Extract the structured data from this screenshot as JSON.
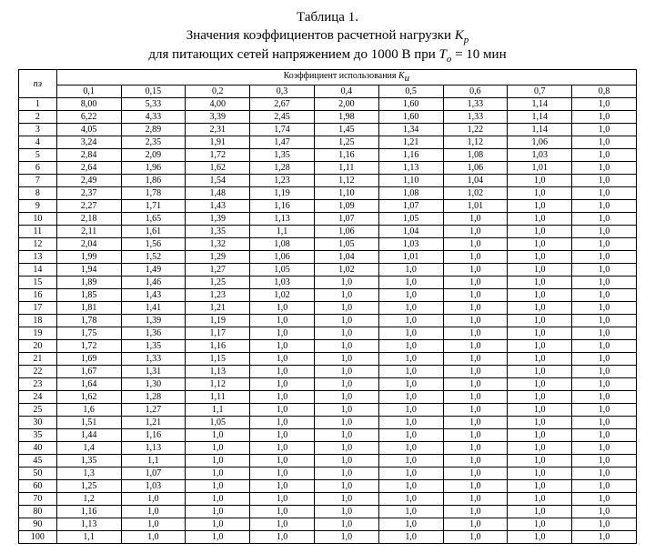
{
  "title": {
    "line1": "Таблица 1.",
    "line2_a": "Значения коэффициентов расчетной нагрузки ",
    "line2_b": "К",
    "line2_sub": "р",
    "line3_a": "для питающих сетей напряжением до 1000 В при ",
    "line3_b": "Т",
    "line3_sub": "о",
    "line3_c": " = 10 мин"
  },
  "header": {
    "na": "nэ",
    "group_a": "Коэффициент использования ",
    "group_b": "К",
    "group_sub": "и"
  },
  "cols": [
    "0,1",
    "0,15",
    "0,2",
    "0,3",
    "0,4",
    "0,5",
    "0,6",
    "0,7",
    "0,8"
  ],
  "na": [
    "1",
    "2",
    "3",
    "4",
    "5",
    "6",
    "7",
    "8",
    "9",
    "10",
    "11",
    "12",
    "13",
    "14",
    "15",
    "16",
    "17",
    "18",
    "19",
    "20",
    "21",
    "22",
    "23",
    "24",
    "25",
    "30",
    "35",
    "40",
    "45",
    "50",
    "60",
    "70",
    "80",
    "90",
    "100"
  ],
  "rows": [
    [
      "8,00",
      "5,33",
      "4,00",
      "2,67",
      "2,00",
      "1,60",
      "1,33",
      "1,14",
      "1,0"
    ],
    [
      "6,22",
      "4,33",
      "3,39",
      "2,45",
      "1,98",
      "1,60",
      "1,33",
      "1,14",
      "1,0"
    ],
    [
      "4,05",
      "2,89",
      "2,31",
      "1,74",
      "1,45",
      "1,34",
      "1,22",
      "1,14",
      "1,0"
    ],
    [
      "3,24",
      "2,35",
      "1,91",
      "1,47",
      "1,25",
      "1,21",
      "1,12",
      "1,06",
      "1,0"
    ],
    [
      "2,84",
      "2,09",
      "1,72",
      "1,35",
      "1,16",
      "1,16",
      "1,08",
      "1,03",
      "1,0"
    ],
    [
      "2,64",
      "1,96",
      "1,62",
      "1,28",
      "1,11",
      "1,13",
      "1,06",
      "1,01",
      "1,0"
    ],
    [
      "2,49",
      "1,86",
      "1,54",
      "1,23",
      "1,12",
      "1,10",
      "1,04",
      "1,0",
      "1,0"
    ],
    [
      "2,37",
      "1,78",
      "1,48",
      "1,19",
      "1,10",
      "1,08",
      "1,02",
      "1,0",
      "1,0"
    ],
    [
      "2,27",
      "1,71",
      "1,43",
      "1,16",
      "1,09",
      "1,07",
      "1,01",
      "1,0",
      "1,0"
    ],
    [
      "2,18",
      "1,65",
      "1,39",
      "1,13",
      "1,07",
      "1,05",
      "1,0",
      "1,0",
      "1,0"
    ],
    [
      "2,11",
      "1,61",
      "1,35",
      "1,1",
      "1,06",
      "1,04",
      "1,0",
      "1,0",
      "1,0"
    ],
    [
      "2,04",
      "1,56",
      "1,32",
      "1,08",
      "1,05",
      "1,03",
      "1,0",
      "1,0",
      "1,0"
    ],
    [
      "1,99",
      "1,52",
      "1,29",
      "1,06",
      "1,04",
      "1,01",
      "1,0",
      "1,0",
      "1,0"
    ],
    [
      "1,94",
      "1,49",
      "1,27",
      "1,05",
      "1,02",
      "1,0",
      "1,0",
      "1,0",
      "1,0"
    ],
    [
      "1,89",
      "1,46",
      "1,25",
      "1,03",
      "1,0",
      "1,0",
      "1,0",
      "1,0",
      "1,0"
    ],
    [
      "1,85",
      "1,43",
      "1,23",
      "1,02",
      "1,0",
      "1,0",
      "1,0",
      "1,0",
      "1,0"
    ],
    [
      "1,81",
      "1,41",
      "1,21",
      "1,0",
      "1,0",
      "1,0",
      "1,0",
      "1,0",
      "1,0"
    ],
    [
      "1,78",
      "1,39",
      "1,19",
      "1,0",
      "1,0",
      "1,0",
      "1,0",
      "1,0",
      "1,0"
    ],
    [
      "1,75",
      "1,36",
      "1,17",
      "1,0",
      "1,0",
      "1,0",
      "1,0",
      "1,0",
      "1,0"
    ],
    [
      "1,72",
      "1,35",
      "1,16",
      "1,0",
      "1,0",
      "1,0",
      "1,0",
      "1,0",
      "1,0"
    ],
    [
      "1,69",
      "1,33",
      "1,15",
      "1,0",
      "1,0",
      "1,0",
      "1,0",
      "1,0",
      "1,0"
    ],
    [
      "1,67",
      "1,31",
      "1,13",
      "1,0",
      "1,0",
      "1,0",
      "1,0",
      "1,0",
      "1,0"
    ],
    [
      "1,64",
      "1,30",
      "1,12",
      "1,0",
      "1,0",
      "1,0",
      "1,0",
      "1,0",
      "1,0"
    ],
    [
      "1,62",
      "1,28",
      "1,11",
      "1,0",
      "1,0",
      "1,0",
      "1,0",
      "1,0",
      "1,0"
    ],
    [
      "1,6",
      "1,27",
      "1,1",
      "1,0",
      "1,0",
      "1,0",
      "1,0",
      "1,0",
      "1,0"
    ],
    [
      "1,51",
      "1,21",
      "1,05",
      "1,0",
      "1,0",
      "1,0",
      "1,0",
      "1,0",
      "1,0"
    ],
    [
      "1,44",
      "1,16",
      "1,0",
      "1,0",
      "1,0",
      "1,0",
      "1,0",
      "1,0",
      "1,0"
    ],
    [
      "1,4",
      "1,13",
      "1,0",
      "1,0",
      "1,0",
      "1,0",
      "1,0",
      "1,0",
      "1,0"
    ],
    [
      "1,35",
      "1,1",
      "1,0",
      "1,0",
      "1,0",
      "1,0",
      "1,0",
      "1,0",
      "1,0"
    ],
    [
      "1,3",
      "1,07",
      "1,0",
      "1,0",
      "1,0",
      "1,0",
      "1,0",
      "1,0",
      "1,0"
    ],
    [
      "1,25",
      "1,03",
      "1,0",
      "1,0",
      "1,0",
      "1,0",
      "1,0",
      "1,0",
      "1,0"
    ],
    [
      "1,2",
      "1,0",
      "1,0",
      "1,0",
      "1,0",
      "1,0",
      "1,0",
      "1,0",
      "1,0"
    ],
    [
      "1,16",
      "1,0",
      "1,0",
      "1,0",
      "1,0",
      "1,0",
      "1,0",
      "1,0",
      "1,0"
    ],
    [
      "1,13",
      "1,0",
      "1,0",
      "1,0",
      "1,0",
      "1,0",
      "1,0",
      "1,0",
      "1,0"
    ],
    [
      "1,1",
      "1,0",
      "1,0",
      "1,0",
      "1,0",
      "1,0",
      "1,0",
      "1,0",
      "1,0"
    ]
  ]
}
